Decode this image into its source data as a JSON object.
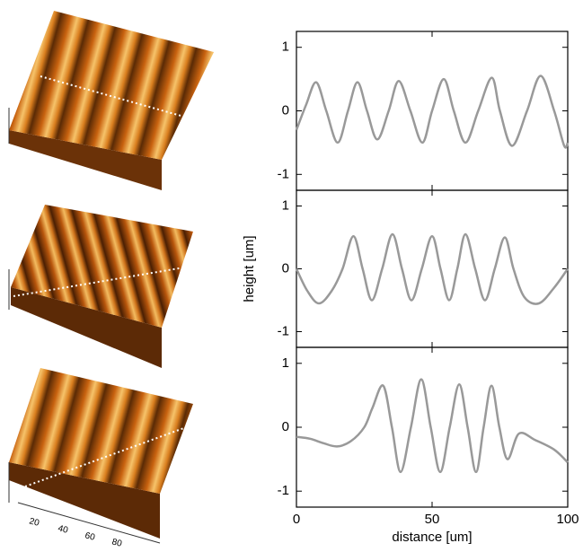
{
  "afm_images": {
    "xtick_labels": [
      20,
      40,
      60,
      80
    ]
  },
  "chart_data": [
    {
      "type": "line",
      "color": "#999999",
      "x": [
        0,
        3.6,
        7.3,
        11,
        15.2,
        19,
        22.5,
        26,
        29.8,
        34,
        37.7,
        42,
        46.4,
        50,
        54.3,
        58,
        62.3,
        67,
        72,
        75,
        79.5,
        85,
        90,
        95,
        98.7,
        100
      ],
      "values": [
        -0.3,
        0.1,
        0.45,
        0,
        -0.5,
        0,
        0.45,
        0,
        -0.45,
        0,
        0.47,
        0,
        -0.5,
        0,
        0.5,
        0,
        -0.5,
        0,
        0.52,
        0,
        -0.55,
        0,
        0.55,
        0,
        -0.55,
        -0.5
      ],
      "xlim": [
        0,
        100
      ],
      "xticks": [
        0,
        50,
        100
      ],
      "ylim": [
        -1.25,
        1.25
      ],
      "yticks": [
        -1,
        0,
        1
      ]
    },
    {
      "type": "line",
      "color": "#999999",
      "ylabel": "height [um]",
      "x": [
        0,
        4,
        8.3,
        13,
        17,
        21,
        24.4,
        27.8,
        31.6,
        35.4,
        38.9,
        42.4,
        46.2,
        50,
        53.1,
        56.3,
        59.3,
        62.3,
        65.9,
        69.5,
        73.1,
        76.8,
        80,
        84,
        89.4,
        95,
        100
      ],
      "values": [
        0,
        -0.35,
        -0.55,
        -0.35,
        0,
        0.52,
        0,
        -0.5,
        0,
        0.55,
        0,
        -0.5,
        0,
        0.52,
        0,
        -0.5,
        0,
        0.55,
        0,
        -0.5,
        0,
        0.5,
        0,
        -0.45,
        -0.55,
        -0.3,
        0
      ],
      "xlim": [
        0,
        100
      ],
      "xticks": [
        0,
        50,
        100
      ],
      "ylim": [
        -1.25,
        1.25
      ],
      "yticks": [
        -1,
        0,
        1
      ]
    },
    {
      "type": "line",
      "color": "#999999",
      "xlabel": "distance [um]",
      "x": [
        0,
        5,
        10,
        15,
        20,
        25,
        28,
        32,
        35.2,
        38.4,
        42.2,
        46,
        49.5,
        53,
        56.5,
        60,
        63.1,
        66.2,
        69,
        71.9,
        74.8,
        77.8,
        82,
        88,
        95,
        100
      ],
      "values": [
        -0.15,
        -0.18,
        -0.25,
        -0.3,
        -0.22,
        0,
        0.3,
        0.65,
        0,
        -0.7,
        0,
        0.75,
        0,
        -0.7,
        0,
        0.67,
        0,
        -0.7,
        0,
        0.65,
        0,
        -0.5,
        -0.1,
        -0.2,
        -0.35,
        -0.55
      ],
      "xlim": [
        0,
        100
      ],
      "xticks": [
        0,
        50,
        100
      ],
      "ylim": [
        -1.25,
        1.25
      ],
      "yticks": [
        -1,
        0,
        1
      ]
    }
  ]
}
